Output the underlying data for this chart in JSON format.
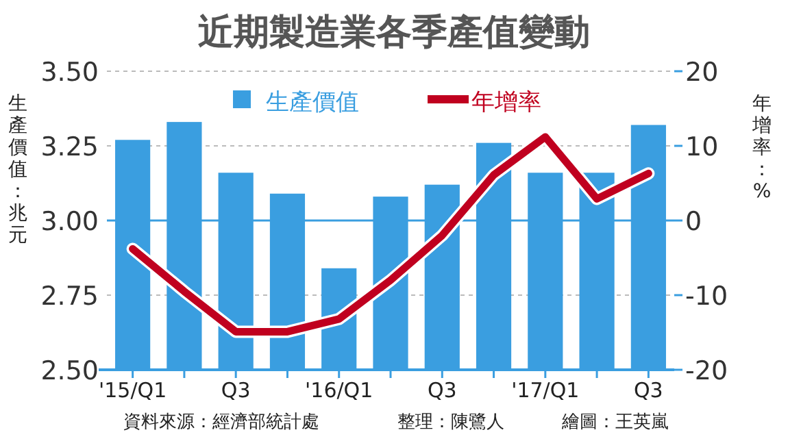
{
  "chart_data": {
    "type": "bar",
    "title": "近期製造業各季產值變動",
    "ylabel": "生產價值：兆元",
    "y2label": "年增率：%",
    "categories": [
      "'15/Q1",
      null,
      "Q3",
      null,
      "'16/Q1",
      null,
      "Q3",
      null,
      "'17/Q1",
      null,
      "Q3"
    ],
    "series": [
      {
        "name": "生產價值",
        "color": "#3a9ee0",
        "values": [
          3.27,
          3.33,
          3.16,
          3.09,
          2.84,
          3.08,
          3.12,
          3.26,
          3.16,
          3.16,
          3.32
        ]
      },
      {
        "name": "年增率",
        "type": "line",
        "axis": "y2",
        "color": "#c0001f",
        "values": [
          -3.8,
          -9.5,
          -14.9,
          -14.9,
          -13.2,
          -8,
          -2.0,
          6.1,
          11.2,
          2.9,
          6.3
        ]
      }
    ],
    "ylim": [
      2.5,
      3.5
    ],
    "yticks": [
      {
        "value": 2.5,
        "label": "2.50"
      },
      {
        "value": 2.75,
        "label": "2.75"
      },
      {
        "value": 3,
        "label": "3.00"
      },
      {
        "value": 3.25,
        "label": "3.25"
      },
      {
        "value": 3.5,
        "label": "3.50"
      }
    ],
    "y2lim": [
      -20,
      20
    ],
    "y2ticks": [
      -20,
      -10,
      0,
      10,
      20
    ],
    "ref_lines": [
      {
        "axis": "y2",
        "value": 0,
        "color": "#3a9ee0"
      }
    ],
    "grid": "y",
    "legend": "top",
    "annotations": [
      "資料來源：經濟部統計處",
      "整理：陳鷺人",
      "繪圖：王英嵐"
    ]
  }
}
